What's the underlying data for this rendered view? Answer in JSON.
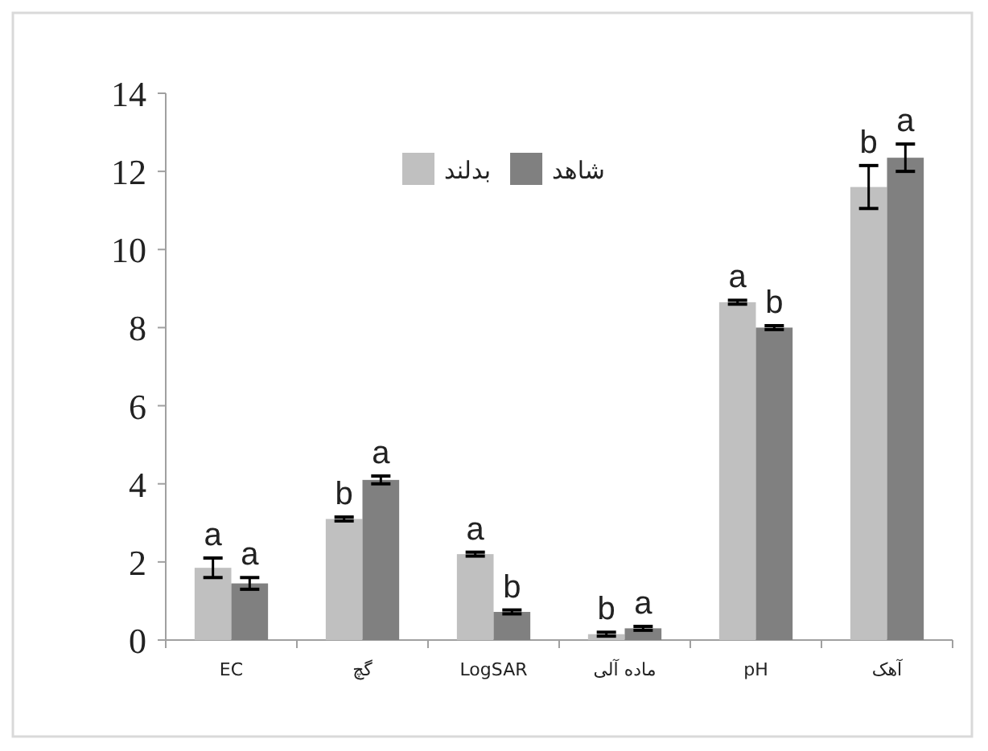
{
  "chart_data": {
    "type": "bar",
    "categories": [
      "EC",
      "گچ",
      "LogSAR",
      "ماده آلی",
      "pH",
      "آهک"
    ],
    "series": [
      {
        "name": "بدلند",
        "color": "#c0c0c0",
        "values": [
          1.85,
          3.1,
          2.2,
          0.15,
          8.65,
          11.6
        ],
        "errors": [
          0.25,
          0.05,
          0.05,
          0.05,
          0.05,
          0.55
        ],
        "value_labels": [
          "a",
          "b",
          "a",
          "b",
          "a",
          "b"
        ]
      },
      {
        "name": "شاهد",
        "color": "#808080",
        "values": [
          1.45,
          4.1,
          0.72,
          0.3,
          8.0,
          12.35
        ],
        "errors": [
          0.15,
          0.1,
          0.05,
          0.05,
          0.05,
          0.35
        ],
        "value_labels": [
          "a",
          "a",
          "b",
          "a",
          "b",
          "a"
        ]
      }
    ],
    "ylim": [
      0,
      14
    ],
    "yticks": [
      0,
      2,
      4,
      6,
      8,
      10,
      12,
      14
    ],
    "grid": false,
    "legend": "top"
  }
}
